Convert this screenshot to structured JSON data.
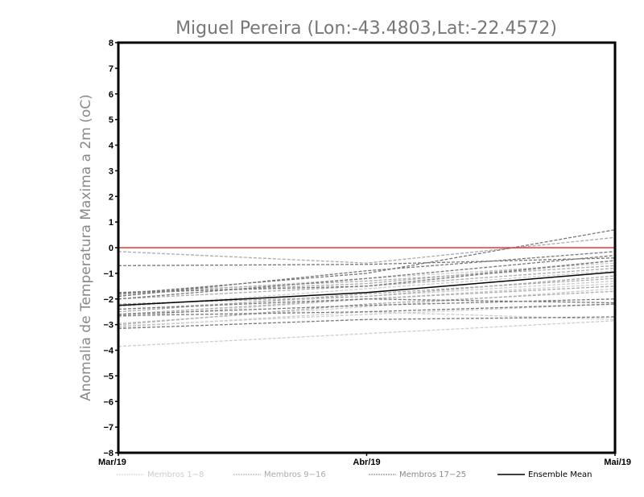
{
  "chart_data": {
    "type": "line",
    "title": "Miguel Pereira (Lon:-43.4803,Lat:-22.4572)",
    "xlabel": "",
    "ylabel": "Anomalia de Temperatura Maxima a 2m (oC)",
    "categories": [
      "Mar/19",
      "Abr/19",
      "Mai/19"
    ],
    "ylim": [
      -8,
      8
    ],
    "yticks": [
      8,
      7,
      6,
      5,
      4,
      3,
      2,
      1,
      0,
      -1,
      -2,
      -3,
      -4,
      -5,
      -6,
      -7,
      -8
    ],
    "reference_line": {
      "value": 0,
      "color": "#ee3333"
    },
    "legend": [
      {
        "label": "Membros 1-8",
        "color": "#cccccc",
        "style": "dashed"
      },
      {
        "label": "Membros 9-16",
        "color": "#aaaaaa",
        "style": "dashed"
      },
      {
        "label": "Membros 17-25",
        "color": "#777777",
        "style": "dashed"
      },
      {
        "label": "Ensemble Mean",
        "color": "#000000",
        "style": "solid"
      }
    ],
    "legend_placement": "bottom",
    "series_groups": [
      {
        "name": "Membros 1-8",
        "color": "#cccccc",
        "members": [
          [
            -3.85,
            -3.35,
            -2.85
          ],
          [
            -3.05,
            -2.6,
            -2.2
          ],
          [
            -2.95,
            -2.3,
            -1.6
          ],
          [
            -2.4,
            -1.9,
            -1.3
          ],
          [
            -1.85,
            -1.2,
            -0.6
          ],
          [
            -2.7,
            -2.0,
            -1.4
          ],
          [
            -3.1,
            -2.5,
            -2.8
          ],
          [
            -2.3,
            -1.6,
            -0.9
          ]
        ]
      },
      {
        "name": "Membros 9-16",
        "color": "#aaaaaa",
        "members": [
          [
            -0.15,
            -0.6,
            0.4
          ],
          [
            -1.8,
            -1.4,
            -0.5
          ],
          [
            -2.6,
            -2.0,
            -1.5
          ],
          [
            -2.0,
            -1.5,
            -0.8
          ],
          [
            -2.5,
            -1.8,
            -1.2
          ],
          [
            -1.75,
            -1.3,
            -0.7
          ],
          [
            -3.0,
            -2.2,
            -1.7
          ],
          [
            -2.2,
            -1.9,
            -1.1
          ]
        ]
      },
      {
        "name": "Membros 17-25",
        "color": "#777777",
        "members": [
          [
            -0.7,
            -0.65,
            -0.4
          ],
          [
            -1.8,
            -1.0,
            0.7
          ],
          [
            -2.65,
            -2.5,
            -2.2
          ],
          [
            -3.15,
            -2.8,
            -2.7
          ],
          [
            -1.75,
            -1.5,
            -0.5
          ],
          [
            -2.0,
            -1.2,
            -0.3
          ],
          [
            -2.4,
            -2.0,
            -2.15
          ],
          [
            -1.9,
            -0.9,
            -0.15
          ],
          [
            -2.6,
            -2.25,
            -2.0
          ]
        ]
      }
    ],
    "ensemble_mean": {
      "name": "Ensemble Mean",
      "color": "#000000",
      "values": [
        -2.25,
        -1.75,
        -0.95
      ]
    }
  }
}
